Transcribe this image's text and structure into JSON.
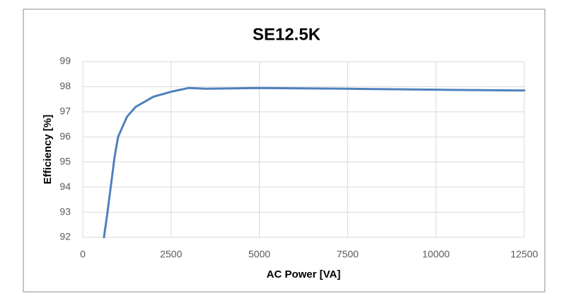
{
  "chart_data": {
    "type": "line",
    "title": "SE12.5K",
    "x_label": "AC Power [VA]",
    "y_label": "Efficiency [%]",
    "x": [
      600,
      700,
      800,
      900,
      1000,
      1250,
      1500,
      2000,
      2500,
      3000,
      3500,
      5000,
      7500,
      10000,
      12500
    ],
    "series": [
      {
        "name": "SE12.5K",
        "color": "#4f81bd",
        "values": [
          92,
          93,
          94.1,
          95.2,
          96,
          96.8,
          97.2,
          97.6,
          97.8,
          97.95,
          97.92,
          97.95,
          97.92,
          97.88,
          97.85
        ]
      }
    ],
    "xlim": [
      0,
      12500
    ],
    "xticks": [
      0,
      2500,
      5000,
      7500,
      10000,
      12500
    ],
    "ylim": [
      92,
      99
    ],
    "yticks": [
      92,
      93,
      94,
      95,
      96,
      97,
      98,
      99
    ],
    "grid": true
  }
}
